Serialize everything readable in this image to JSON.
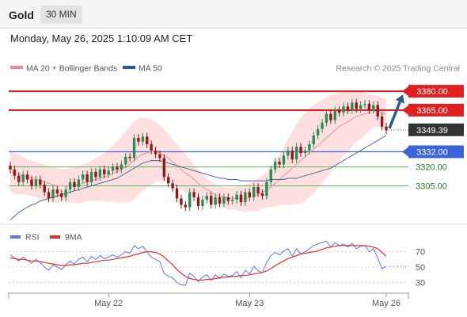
{
  "header": {
    "instrument": "Gold",
    "timeframe": "30 MIN"
  },
  "datetime": "Monday, May 26, 2025 1:10:09 AM CET",
  "credit": "Research © 2025 Trading Central",
  "legend": {
    "bollinger": "MA 20 + Bollinger Bands",
    "ma50": "MA 50",
    "rsi": "RSI",
    "rsi_ma": "9MA"
  },
  "colors": {
    "bull_candle": "#2e8b57",
    "bear_candle": "#8b1a1a",
    "bollinger_band": "#ffd6d6",
    "ma20": "#e8a0a0",
    "ma50": "#4a6a9a",
    "resistance": "#e02020",
    "pivot": "#3a64d8",
    "support": "#5cb85c",
    "support_text": "#2a7a2a",
    "current_price_tag": "#333333",
    "projection_arrow": "#2f5a8f",
    "rsi_line": "#5a7adf",
    "rsi_ma_line": "#e03030"
  },
  "levels": [
    {
      "label": "3380.00",
      "value": 3380,
      "kind": "resistance"
    },
    {
      "label": "3365.00",
      "value": 3365,
      "kind": "resistance"
    },
    {
      "label": "3349.39",
      "value": 3349.39,
      "kind": "current"
    },
    {
      "label": "3332.00",
      "value": 3332,
      "kind": "pivot"
    },
    {
      "label": "3320.00",
      "value": 3320,
      "kind": "support"
    },
    {
      "label": "3305.00",
      "value": 3305,
      "kind": "support"
    }
  ],
  "chart_data": {
    "type": "candlestick",
    "timeframe": "30 MIN",
    "xticks": [
      "May 22",
      "May 23",
      "May 26"
    ],
    "xtick_index": [
      23,
      56,
      88
    ],
    "price_range": [
      3272,
      3392
    ],
    "projection": {
      "from": 3349.39,
      "to": 3380
    },
    "closes": [
      3318,
      3313,
      3308,
      3314,
      3310,
      3305,
      3310,
      3306,
      3300,
      3295,
      3302,
      3299,
      3296,
      3302,
      3308,
      3304,
      3310,
      3314,
      3308,
      3316,
      3312,
      3318,
      3314,
      3317,
      3320,
      3318,
      3322,
      3328,
      3327,
      3343,
      3340,
      3344,
      3338,
      3333,
      3330,
      3327,
      3312,
      3307,
      3303,
      3295,
      3290,
      3288,
      3300,
      3296,
      3289,
      3294,
      3297,
      3290,
      3296,
      3291,
      3296,
      3293,
      3294,
      3298,
      3292,
      3300,
      3296,
      3304,
      3299,
      3297,
      3308,
      3318,
      3324,
      3322,
      3329,
      3333,
      3326,
      3336,
      3331,
      3333,
      3338,
      3345,
      3350,
      3355,
      3362,
      3357,
      3365,
      3363,
      3368,
      3365,
      3371,
      3366,
      3369,
      3370,
      3365,
      3369,
      3360,
      3352,
      3349
    ],
    "ma20": [
      3316,
      3315,
      3314,
      3313,
      3312,
      3311,
      3310,
      3309,
      3308,
      3307,
      3306,
      3305,
      3305,
      3305,
      3305,
      3306,
      3306,
      3307,
      3308,
      3309,
      3310,
      3311,
      3312,
      3313,
      3315,
      3316,
      3318,
      3320,
      3322,
      3325,
      3328,
      3330,
      3331,
      3332,
      3332,
      3331,
      3329,
      3327,
      3324,
      3321,
      3318,
      3315,
      3313,
      3310,
      3307,
      3304,
      3302,
      3300,
      3298,
      3297,
      3296,
      3295,
      3295,
      3295,
      3295,
      3295,
      3296,
      3297,
      3298,
      3300,
      3302,
      3304,
      3307,
      3310,
      3313,
      3316,
      3319,
      3322,
      3325,
      3328,
      3331,
      3334,
      3337,
      3340,
      3343,
      3346,
      3349,
      3352,
      3354,
      3356,
      3358,
      3360,
      3361,
      3362,
      3363,
      3364,
      3364,
      3363,
      3362
    ],
    "bb_upper": [
      3332,
      3331,
      3330,
      3328,
      3326,
      3325,
      3324,
      3323,
      3322,
      3321,
      3320,
      3319,
      3318,
      3318,
      3319,
      3320,
      3321,
      3322,
      3323,
      3325,
      3327,
      3329,
      3331,
      3334,
      3337,
      3340,
      3344,
      3348,
      3352,
      3356,
      3358,
      3359,
      3359,
      3358,
      3356,
      3353,
      3350,
      3346,
      3342,
      3338,
      3334,
      3330,
      3326,
      3322,
      3318,
      3314,
      3311,
      3308,
      3306,
      3305,
      3304,
      3304,
      3304,
      3304,
      3305,
      3306,
      3307,
      3309,
      3311,
      3313,
      3316,
      3320,
      3325,
      3330,
      3336,
      3342,
      3348,
      3354,
      3359,
      3363,
      3366,
      3369,
      3371,
      3373,
      3375,
      3377,
      3378,
      3379,
      3379,
      3380,
      3380,
      3380,
      3380,
      3379,
      3378,
      3377,
      3376,
      3375,
      3374
    ],
    "bb_lower": [
      3300,
      3299,
      3298,
      3298,
      3298,
      3297,
      3296,
      3295,
      3294,
      3293,
      3292,
      3291,
      3292,
      3292,
      3291,
      3292,
      3291,
      3292,
      3293,
      3293,
      3293,
      3293,
      3293,
      3292,
      3293,
      3292,
      3292,
      3292,
      3292,
      3294,
      3298,
      3301,
      3303,
      3306,
      3308,
      3309,
      3308,
      3308,
      3306,
      3304,
      3302,
      3300,
      3300,
      3298,
      3296,
      3294,
      3293,
      3292,
      3290,
      3289,
      3288,
      3286,
      3286,
      3286,
      3285,
      3284,
      3285,
      3285,
      3285,
      3287,
      3288,
      3288,
      3289,
      3290,
      3290,
      3290,
      3290,
      3290,
      3291,
      3293,
      3296,
      3299,
      3303,
      3307,
      3311,
      3315,
      3320,
      3325,
      3329,
      3332,
      3336,
      3340,
      3342,
      3345,
      3348,
      3351,
      3352,
      3351,
      3350
    ],
    "ma50": [
      3278,
      3281,
      3284,
      3286,
      3288,
      3290,
      3291,
      3293,
      3294,
      3295,
      3296,
      3297,
      3298,
      3299,
      3300,
      3301,
      3302,
      3303,
      3304,
      3305,
      3306,
      3307,
      3308,
      3309,
      3310,
      3311,
      3313,
      3315,
      3317,
      3319,
      3321,
      3323,
      3324,
      3325,
      3325,
      3325,
      3324,
      3323,
      3322,
      3321,
      3320,
      3319,
      3318,
      3317,
      3316,
      3315,
      3314,
      3313,
      3312,
      3311,
      3311,
      3310,
      3310,
      3310,
      3309,
      3309,
      3309,
      3309,
      3309,
      3309,
      3309,
      3310,
      3310,
      3310,
      3310,
      3311,
      3311,
      3311,
      3312,
      3313,
      3314,
      3315,
      3316,
      3317,
      3318,
      3319,
      3321,
      3323,
      3325,
      3327,
      3329,
      3331,
      3333,
      3335,
      3337,
      3339,
      3341,
      3343,
      3345
    ],
    "rsi": {
      "ticks": [
        70,
        50,
        30
      ],
      "range": [
        18,
        82
      ],
      "rsi": [
        66,
        62,
        58,
        63,
        59,
        55,
        60,
        56,
        50,
        46,
        53,
        50,
        47,
        53,
        58,
        54,
        60,
        63,
        57,
        64,
        60,
        65,
        61,
        63,
        66,
        63,
        66,
        70,
        68,
        78,
        74,
        77,
        70,
        63,
        60,
        57,
        42,
        38,
        36,
        30,
        27,
        26,
        42,
        38,
        31,
        37,
        40,
        33,
        40,
        35,
        41,
        38,
        39,
        44,
        36,
        46,
        41,
        51,
        45,
        43,
        56,
        65,
        69,
        66,
        71,
        74,
        64,
        74,
        67,
        70,
        74,
        78,
        80,
        82,
        84,
        76,
        82,
        78,
        80,
        76,
        81,
        74,
        77,
        78,
        70,
        74,
        62,
        48,
        51
      ],
      "ma": [
        62,
        61,
        60,
        60,
        59,
        58,
        58,
        57,
        56,
        55,
        54,
        53,
        52,
        52,
        53,
        53,
        54,
        55,
        55,
        56,
        57,
        58,
        59,
        59,
        60,
        61,
        62,
        63,
        64,
        66,
        67,
        69,
        70,
        70,
        69,
        67,
        63,
        58,
        53,
        47,
        42,
        38,
        35,
        34,
        33,
        33,
        34,
        34,
        35,
        36,
        37,
        37,
        38,
        38,
        39,
        39,
        40,
        41,
        42,
        43,
        45,
        48,
        52,
        55,
        58,
        61,
        63,
        65,
        67,
        68,
        69,
        70,
        71,
        73,
        75,
        76,
        77,
        78,
        78,
        78,
        78,
        78,
        78,
        78,
        77,
        76,
        74,
        69,
        64
      ]
    }
  }
}
